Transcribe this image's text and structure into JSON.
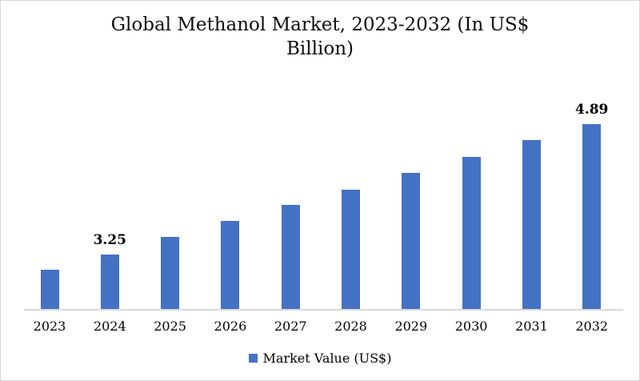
{
  "chart_data": {
    "type": "bar",
    "title": "Global Methanol Market, 2023-2032 (In US$ Billion)",
    "title_lines": [
      "Global Methanol Market, 2023-2032 (In US$",
      "Billion)"
    ],
    "categories": [
      "2023",
      "2024",
      "2025",
      "2026",
      "2027",
      "2028",
      "2029",
      "2030",
      "2031",
      "2032"
    ],
    "values": [
      3.06,
      3.25,
      3.47,
      3.67,
      3.87,
      4.07,
      4.28,
      4.48,
      4.69,
      4.89
    ],
    "shown_data_labels": [
      {
        "category": "2024",
        "label": "3.25"
      },
      {
        "category": "2032",
        "label": "4.89"
      }
    ],
    "xlabel": "",
    "ylabel": "",
    "ylim": [
      2.55,
      5.0
    ],
    "grid": false,
    "y_axis_shown": false,
    "bar_color": "#4472c4",
    "axis_line_color": "#d9d9d9",
    "legend": {
      "position": "bottom",
      "entries": [
        {
          "label": "Market Value (US$)",
          "color": "#4472c4"
        }
      ]
    }
  }
}
